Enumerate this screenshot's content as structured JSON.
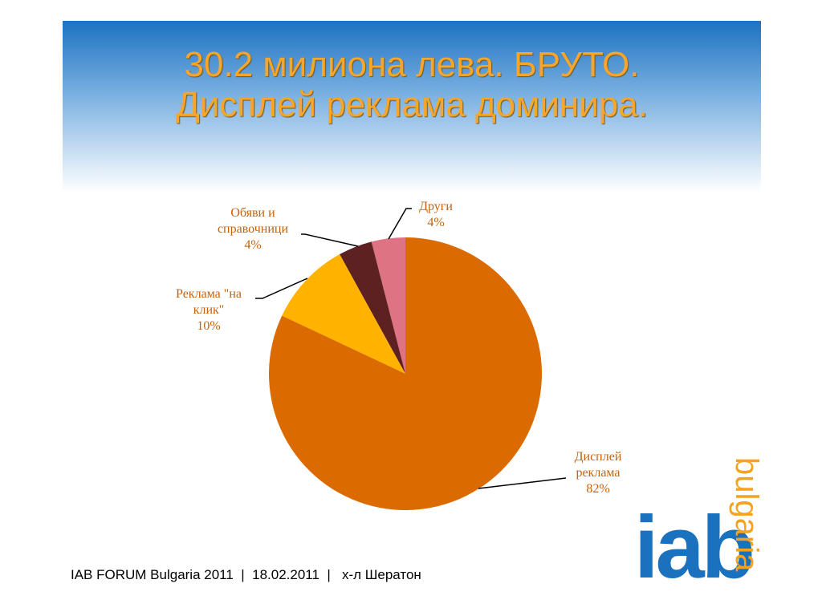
{
  "slide_title": [
    "30.2 милиона лева. БРУТО.",
    "Дисплей реклама доминира."
  ],
  "chart_data": {
    "type": "pie",
    "categories": [
      "Дисплей реклама",
      "Реклама \"на клик\"",
      "Обяви и справочници",
      "Други"
    ],
    "values": [
      82,
      10,
      4,
      4
    ],
    "value_labels": [
      "82%",
      "10%",
      "4%",
      "4%"
    ],
    "colors": [
      "#db6a00",
      "#ffb200",
      "#5e2121",
      "#de7384"
    ]
  },
  "footer": "IAB FORUM Bulgaria 2011  |  18.02.2011  |   х-л Шератон",
  "logo": {
    "main": "iab",
    "sub": "bulgaria"
  }
}
